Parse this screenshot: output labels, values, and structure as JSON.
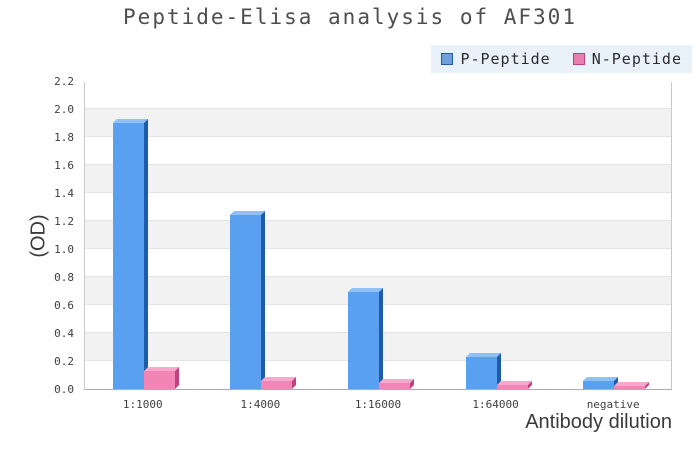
{
  "title": "Peptide-Elisa analysis of AF301",
  "colors": {
    "title_text": "#4E4E4E",
    "tick_text": "#3F3F3F",
    "axis_label_text": "#3A3A3A",
    "legend_background": "#E9F1FA",
    "plot_border": "#C9C9C9",
    "gridline": "#E4E4E4",
    "band_white": "#FFFFFF",
    "band_gray": "#F2F2F2"
  },
  "chart_data": {
    "type": "bar",
    "style": "3d-bars",
    "title": "Peptide-Elisa analysis of AF301",
    "xlabel": "Antibody dilution",
    "ylabel": "(OD)",
    "categories": [
      "1:1000",
      "1:4000",
      "1:16000",
      "1:64000",
      "negative"
    ],
    "series": [
      {
        "name": "P-Peptide",
        "values": [
          1.9,
          1.24,
          0.69,
          0.23,
          0.06
        ],
        "color": "#59A1F0",
        "color_top": "#8FC0F6",
        "color_side": "#1E5CAB",
        "legend_color": "#6FA0DC"
      },
      {
        "name": "N-Peptide",
        "values": [
          0.13,
          0.06,
          0.04,
          0.03,
          0.02
        ],
        "color": "#F285B6",
        "color_top": "#F9A8CC",
        "color_side": "#C14080",
        "legend_color": "#E67FAD"
      }
    ],
    "ylim": [
      0,
      2.2
    ],
    "ytick_step": 0.2,
    "yticks": [
      "0.0",
      "0.2",
      "0.4",
      "0.6",
      "0.8",
      "1.0",
      "1.2",
      "1.4",
      "1.6",
      "1.8",
      "2.0",
      "2.2"
    ],
    "grid": "horizontal-bands",
    "band_colors": [
      "#FFFFFF",
      "#F2F2F2"
    ],
    "legend_position": "top-right"
  }
}
